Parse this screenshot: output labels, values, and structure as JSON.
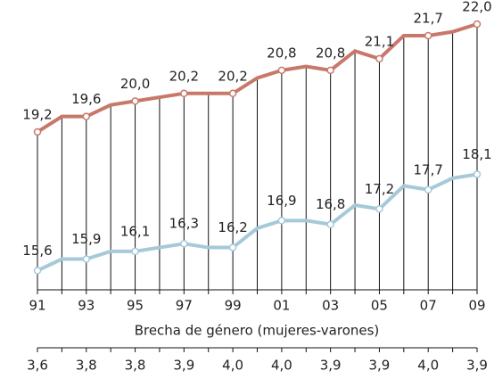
{
  "chart_data": {
    "type": "line",
    "categories": [
      "91",
      null,
      "93",
      null,
      "95",
      null,
      "97",
      null,
      "99",
      null,
      "01",
      null,
      "03",
      null,
      "05",
      null,
      "07",
      null,
      "09"
    ],
    "series": [
      {
        "color": "#c8786a",
        "values": [
          19.2,
          19.6,
          19.6,
          19.9,
          20.0,
          20.1,
          20.2,
          20.2,
          20.2,
          20.6,
          20.8,
          20.9,
          20.8,
          21.3,
          21.1,
          21.7,
          21.7,
          21.8,
          22.0
        ],
        "value_labels": [
          "19,2",
          null,
          "19,6",
          null,
          "20,0",
          null,
          "20,2",
          null,
          "20,2",
          null,
          "20,8",
          null,
          "20,8",
          null,
          "21,1",
          null,
          "21,7",
          null,
          "22,0"
        ]
      },
      {
        "color": "#a6c9d9",
        "values": [
          15.6,
          15.9,
          15.9,
          16.1,
          16.1,
          16.2,
          16.3,
          16.2,
          16.2,
          16.7,
          16.9,
          16.9,
          16.8,
          17.3,
          17.2,
          17.8,
          17.7,
          18.0,
          18.1
        ],
        "value_labels": [
          "15,6",
          null,
          "15,9",
          null,
          "16,1",
          null,
          "16,3",
          null,
          "16,2",
          null,
          "16,9",
          null,
          "16,8",
          null,
          "17,2",
          null,
          "17,7",
          null,
          "18,1"
        ]
      }
    ],
    "ylim": [
      15,
      22.5
    ],
    "gap": {
      "title": "Brecha de género (mujeres-varones)",
      "labels": [
        "3,6",
        "3,8",
        "3,8",
        "3,9",
        "4,0",
        "4,0",
        "3,9",
        "3,9",
        "4,0",
        "3,9"
      ]
    }
  }
}
